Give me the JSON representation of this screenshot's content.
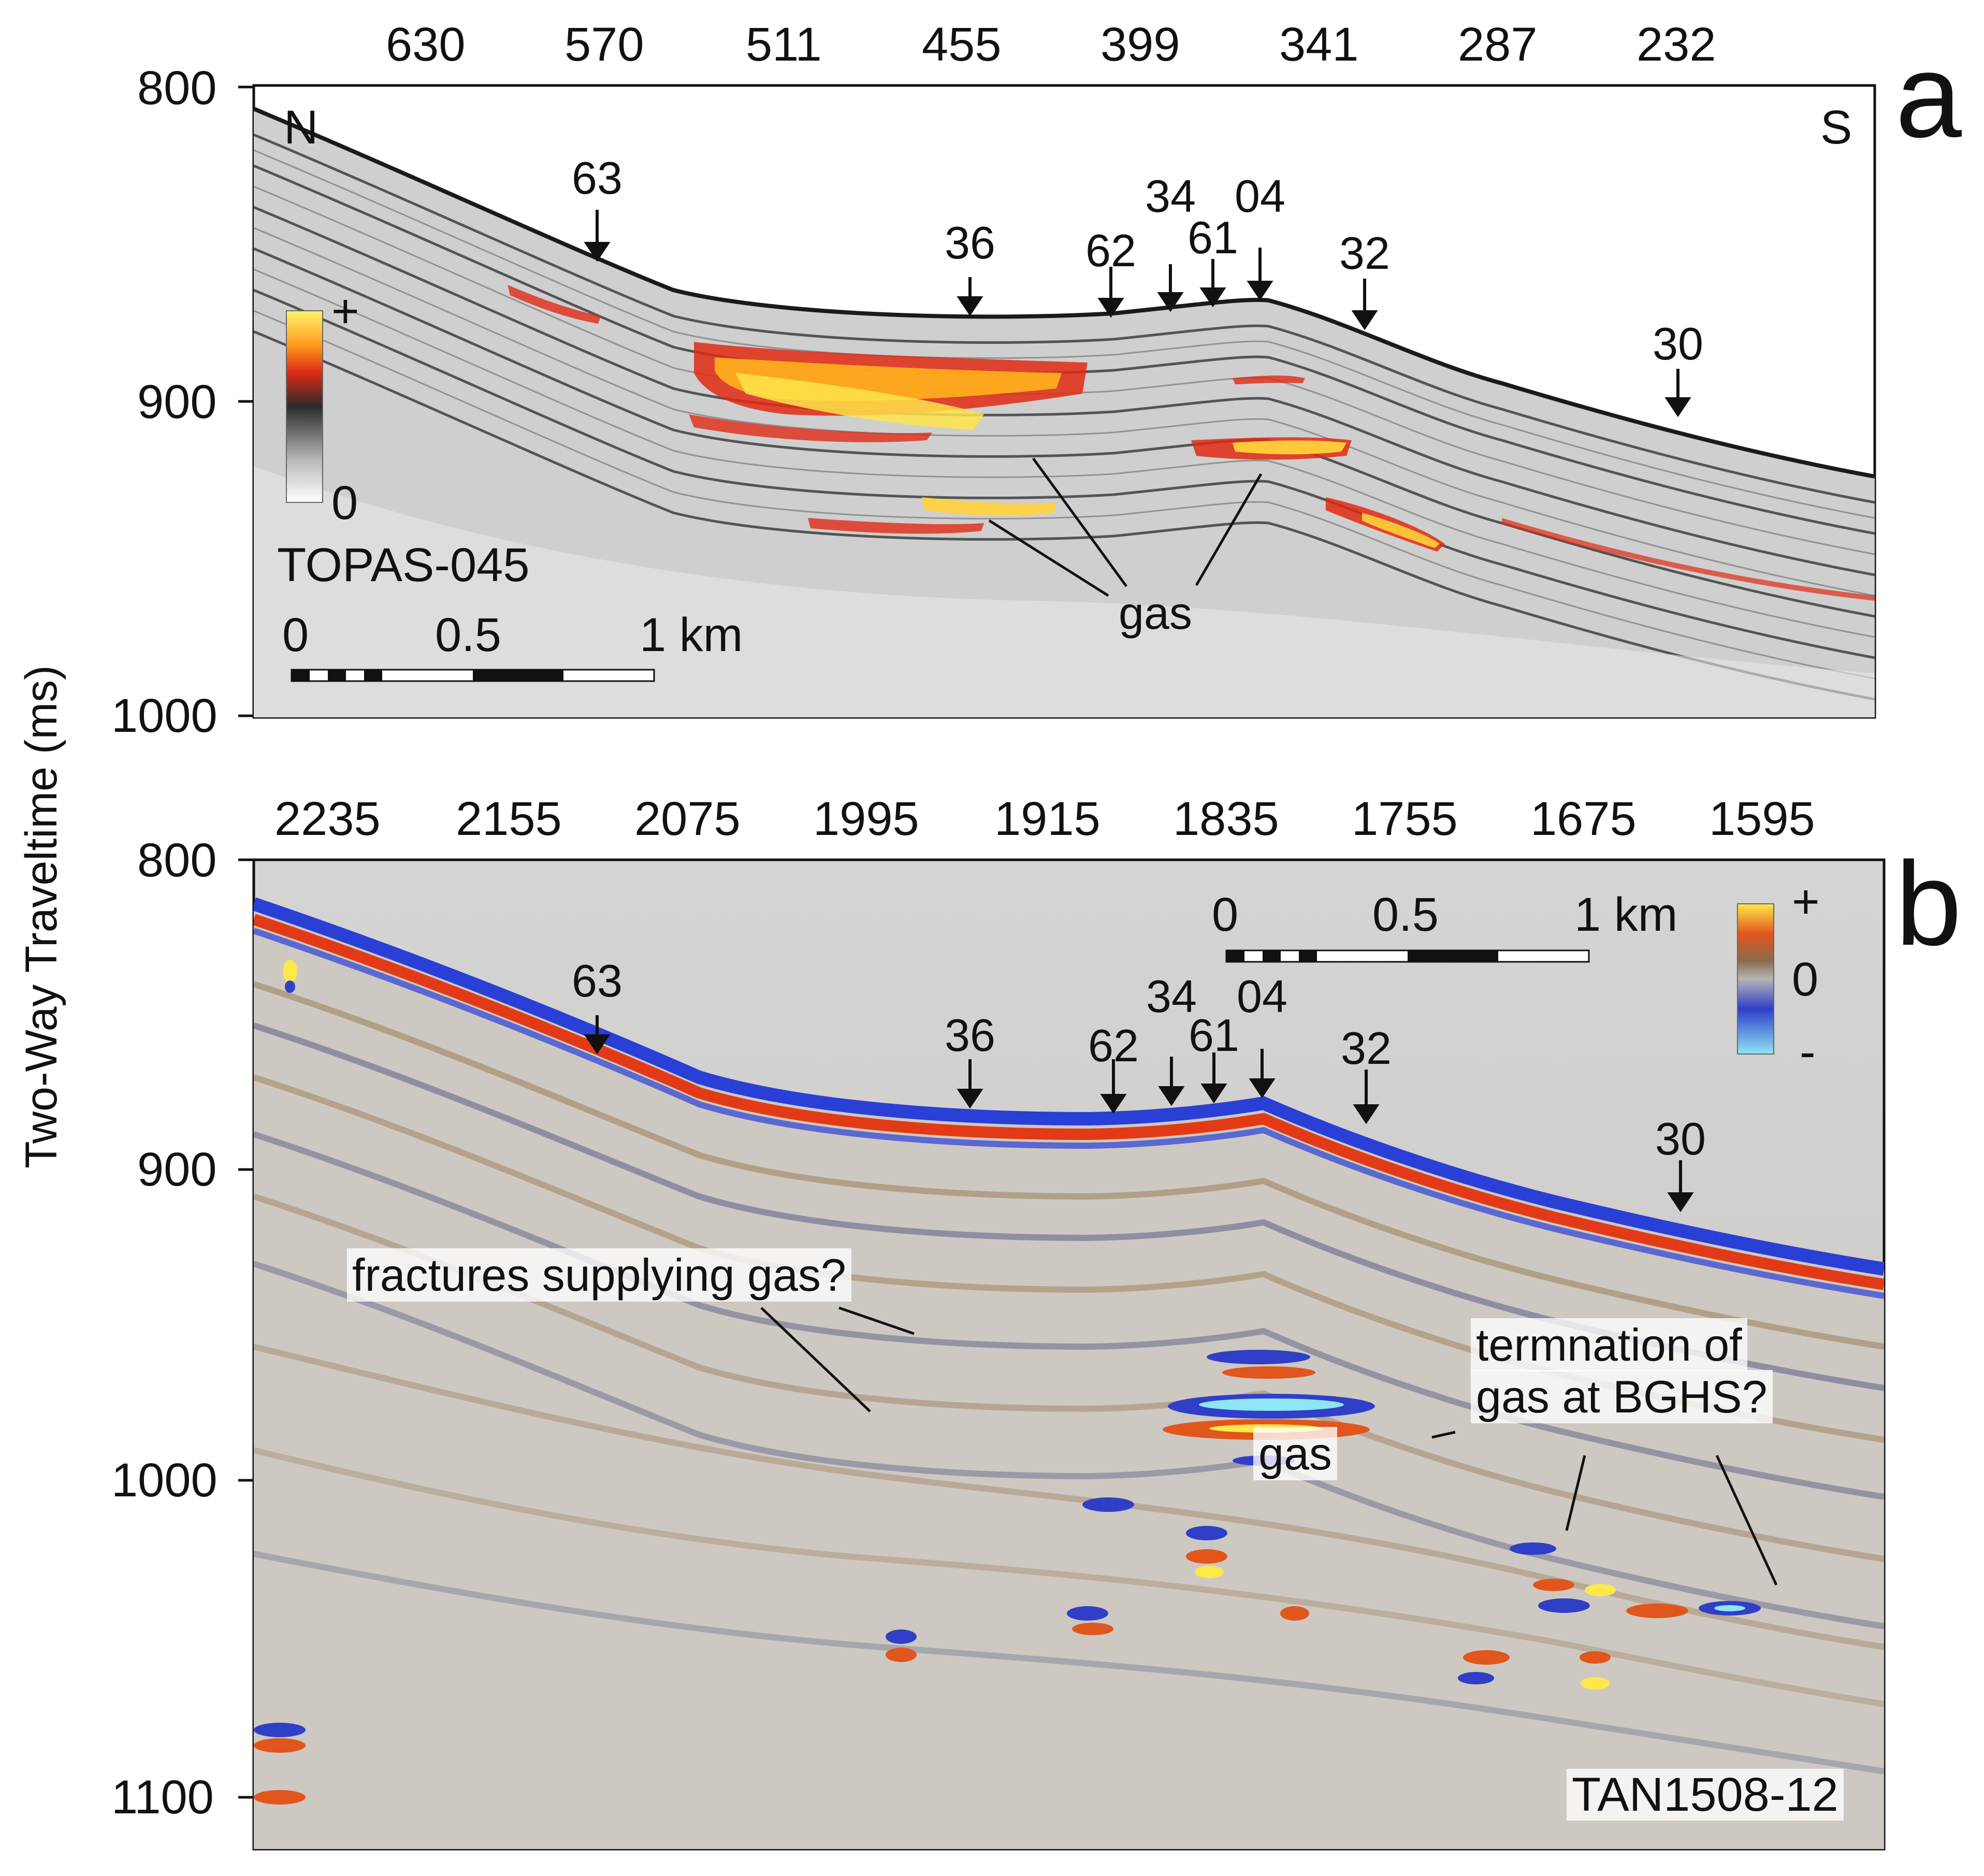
{
  "y_axis_label": "Two-Way Traveltime (ms)",
  "panel_a": {
    "letter": "a",
    "profile": "TOPAS-045",
    "top_ticks": [
      "630",
      "570",
      "511",
      "455",
      "399",
      "341",
      "287",
      "232"
    ],
    "y_ticks": [
      "800",
      "900",
      "1000"
    ],
    "direction_left": "N",
    "direction_right": "S",
    "markers": [
      "63",
      "36",
      "62",
      "34",
      "61",
      "04",
      "32",
      "30"
    ],
    "colorbar": {
      "top": "+",
      "bottom": "0",
      "colors": [
        "#fff36b",
        "#ff9a1c",
        "#e02a14",
        "#2a2a2a",
        "#d8d8d8",
        "#ffffff"
      ]
    },
    "scale": {
      "zero": "0",
      "mid": "0.5",
      "end": "1 km"
    },
    "gas_label": "gas"
  },
  "panel_b": {
    "letter": "b",
    "profile": "TAN1508-12",
    "top_ticks": [
      "2235",
      "2155",
      "2075",
      "1995",
      "1915",
      "1835",
      "1755",
      "1675",
      "1595"
    ],
    "y_ticks": [
      "800",
      "900",
      "1000",
      "1100"
    ],
    "markers": [
      "63",
      "36",
      "62",
      "34",
      "61",
      "04",
      "32",
      "30"
    ],
    "colorbar": {
      "top": "+",
      "mid": "0",
      "bottom": "-",
      "colors": [
        "#ffe84a",
        "#e0561c",
        "#8a6b4e",
        "#b5b5b5",
        "#2f3fc8",
        "#8fe4f5"
      ]
    },
    "scale": {
      "zero": "0",
      "mid": "0.5",
      "end": "1 km"
    },
    "annotations": {
      "fractures": "fractures supplying gas?",
      "termination_line1": "termnation of",
      "termination_line2": "gas at BGHS?",
      "gas": "gas"
    }
  }
}
